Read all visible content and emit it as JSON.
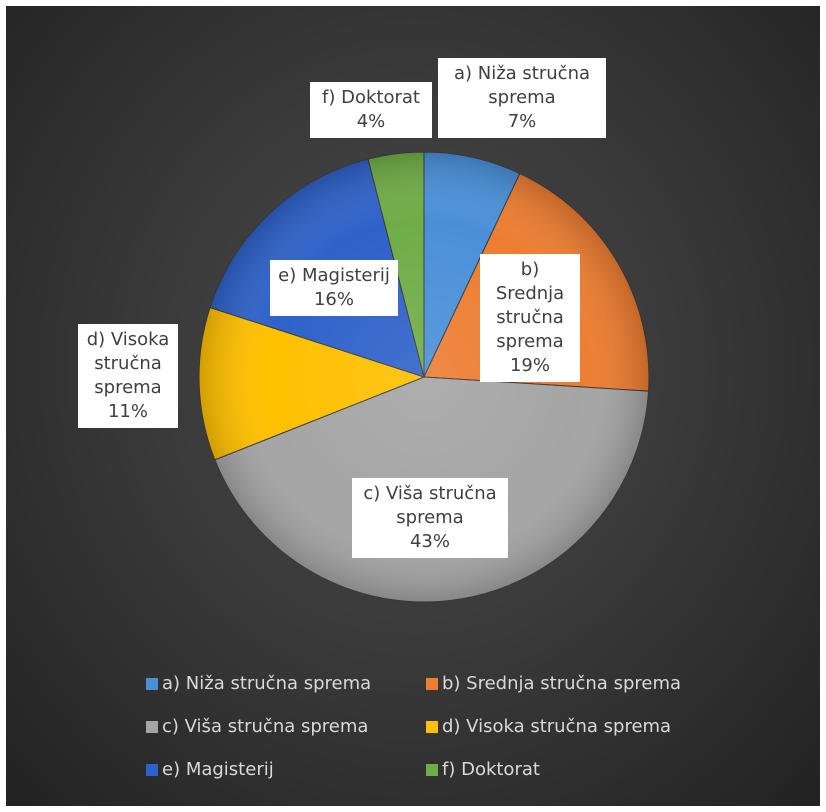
{
  "chart_data": {
    "type": "pie",
    "title": "",
    "legend_position": "bottom",
    "slices": [
      {
        "name": "a) Niža stručna sprema",
        "value": 7,
        "label": "7%",
        "color": "#4a90d9"
      },
      {
        "name": "b) Srednja stručna sprema",
        "value": 19,
        "label": "19%",
        "color": "#ed7d31"
      },
      {
        "name": "c) Viša stručna sprema",
        "value": 43,
        "label": "43%",
        "color": "#a5a5a5"
      },
      {
        "name": "d) Visoka stručna sprema",
        "value": 11,
        "label": "11%",
        "color": "#ffc000"
      },
      {
        "name": "e) Magisterij",
        "value": 16,
        "label": "16%",
        "color": "#2e62c9"
      },
      {
        "name": "f) Doktorat",
        "value": 4,
        "label": "4%",
        "color": "#70ad47"
      }
    ],
    "data_labels": [
      {
        "lines": [
          "a) Niža stručna",
          "sprema",
          "7%"
        ]
      },
      {
        "lines": [
          "b) Srednja",
          "stručna",
          "sprema",
          "19%"
        ]
      },
      {
        "lines": [
          "c) Viša stručna",
          "sprema",
          "43%"
        ]
      },
      {
        "lines": [
          "d) Visoka",
          "stručna",
          "sprema",
          "11%"
        ]
      },
      {
        "lines": [
          "e) Magisterij",
          "16%"
        ]
      },
      {
        "lines": [
          "f) Doktorat",
          "4%"
        ]
      }
    ]
  }
}
